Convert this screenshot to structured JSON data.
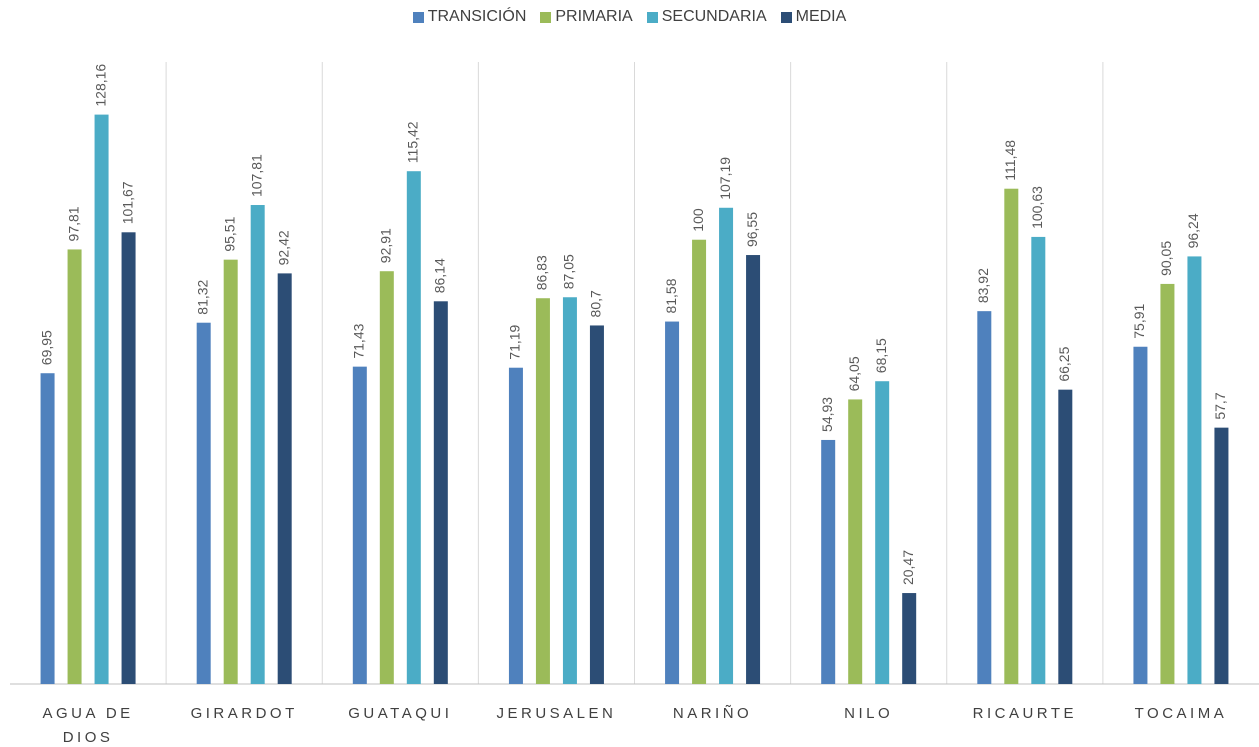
{
  "chart_data": {
    "type": "bar",
    "categories": [
      "AGUA DE DIOS",
      "GIRARDOT",
      "GUATAQUI",
      "JERUSALEN",
      "NARIÑO",
      "NILO",
      "RICAURTE",
      "TOCAIMA"
    ],
    "series": [
      {
        "name": "TRANSICIÓN",
        "color": "#4f81bd",
        "values": [
          69.95,
          81.32,
          71.43,
          71.19,
          81.58,
          54.93,
          83.92,
          75.91
        ],
        "value_labels": [
          "69,95",
          "81,32",
          "71,43",
          "71,19",
          "81,58",
          "54,93",
          "83,92",
          "75,91"
        ]
      },
      {
        "name": "PRIMARIA",
        "color": "#9bbb59",
        "values": [
          97.81,
          95.51,
          92.91,
          86.83,
          100,
          64.05,
          111.48,
          90.05
        ],
        "value_labels": [
          "97,81",
          "95,51",
          "92,91",
          "86,83",
          "100",
          "64,05",
          "111,48",
          "90,05"
        ]
      },
      {
        "name": "SECUNDARIA",
        "color": "#4bacc6",
        "values": [
          128.16,
          107.81,
          115.42,
          87.05,
          107.19,
          68.15,
          100.63,
          96.24
        ],
        "value_labels": [
          "128,16",
          "107,81",
          "115,42",
          "87,05",
          "107,19",
          "68,15",
          "100,63",
          "96,24"
        ]
      },
      {
        "name": "MEDIA",
        "color": "#2c4d75",
        "values": [
          101.67,
          92.42,
          86.14,
          80.7,
          96.55,
          20.47,
          66.25,
          57.7
        ],
        "value_labels": [
          "101,67",
          "92,42",
          "86,14",
          "80,7",
          "96,55",
          "20,47",
          "66,25",
          "57,7"
        ]
      }
    ],
    "ylim": [
      0,
      140
    ],
    "legend": "top"
  }
}
